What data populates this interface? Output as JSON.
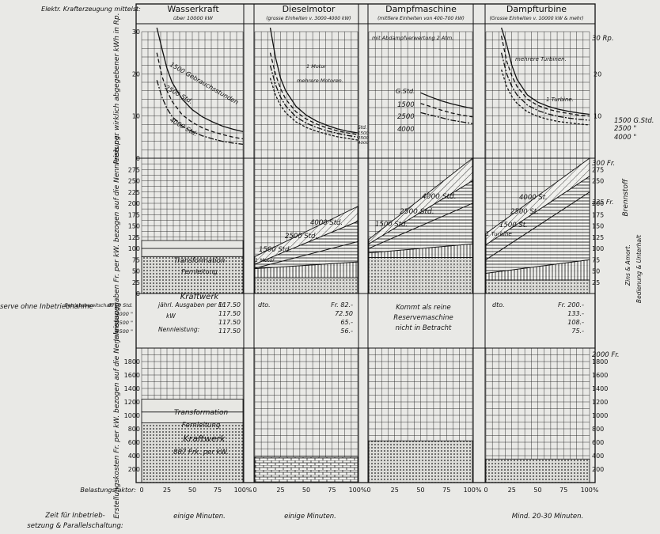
{
  "header": {
    "row_label": "Elektr. Krafterzeugung mittelst:",
    "columns": [
      {
        "title": "Wasserkraft",
        "subtitle": "über 10000 kW"
      },
      {
        "title": "Dieselmotor",
        "subtitle": "(grosse Einheiten v. 3000-4000 kW)"
      },
      {
        "title": "Dampfmaschine",
        "subtitle": "(mittlere Einheiten von 400-700 kW)"
      },
      {
        "title": "Dampfturbine",
        "subtitle": "(Grosse Einheiten v. 10000 kW & mehr)"
      }
    ]
  },
  "row_labels": {
    "price": "Preis per wirklich abgegebener kWh in Rp.",
    "annual": "Jahresausgaben Fr. per kW. bezogen auf die Nennleistung.",
    "reserve_title": "Reine Reserve ohne Inbetriebnahme",
    "reserve_sub": "Betriebsbereitschaft",
    "construction": "Erstellungskosten Fr. per kW. bezogen auf die Nennleistung.",
    "load_factor": "Belastungsfaktor:",
    "startup": "Zeit für Inbetriebsetzung & Parallelschaltung:"
  },
  "texts": {
    "steam_note": "mit Abdampfverwertung 2 Atm.",
    "price_unit": "30 Rp.",
    "annual_unit": "300 Fr.",
    "construction_unit": "2000 Fr.",
    "gstd": "G.Std.",
    "brennstoff": "Brennstoff",
    "zins": "Zins & Amort.",
    "bedienung": "Bedienung & Unterhalt",
    "fr225": "225 Fr.",
    "transformation": "Transformation",
    "fernleitung": "Fernleitung",
    "kraftwerk": "Kraftwerk",
    "kraftwerk_cost": "887 Frk. per kW.",
    "one_motor": "1 Motor",
    "multi_motors": "mehrere Motoren.",
    "multi_turbines": "mehrere Turbinen.",
    "one_turbine": "1 Turbine.",
    "one_turbine_b": "1 Turbine",
    "one_motor_b": "1 Motor",
    "water_curves": [
      "1500 Gebrauchsstunden",
      "2500 Std.",
      "4000 Std."
    ],
    "std_lbl": "Std.",
    "std_1500": "1500",
    "std_2500": "2500",
    "std_4000": "4000",
    "right_labels": [
      "1500 G.Std.",
      "2500 \"",
      "4000 \""
    ],
    "steam_hours_title": "G.Std.",
    "steam_hours": [
      "1500",
      "2500",
      "4000"
    ],
    "annual_diesel": [
      "4000 Std.",
      "2500 Std.",
      "1500 Std."
    ],
    "annual_steam": [
      "4000 Std.",
      "2500 Std.",
      "1500 Std."
    ],
    "annual_turbine": [
      "4000 St.",
      "2500 St.",
      "1500 St."
    ]
  },
  "reserve": {
    "hours": [
      "8760 Std.",
      "4000 \"",
      "2500 \"",
      "1500 \""
    ],
    "water_label": [
      "jährl. Ausgaben per Fr.",
      "kW",
      "Nennleistung:"
    ],
    "water_values": [
      "117.50",
      "117.50",
      "117.50",
      "117.50"
    ],
    "diesel_label": "dto.",
    "diesel_values": [
      "Fr. 82.-",
      "72.50",
      "65.-",
      "56.-"
    ],
    "steam_text": [
      "Kommt als reine",
      "Reservemaschine",
      "nicht in Betracht"
    ],
    "turbine_label": "dto.",
    "turbine_values": [
      "Fr. 200.-",
      "133.-",
      "108.-",
      "75.-"
    ]
  },
  "startup_times": [
    "einige Minuten.",
    "einige Minuten.",
    "",
    "Mind. 20-30 Minuten."
  ],
  "chart_data": [
    {
      "type": "line",
      "title": "Preis per wirklich abgegebener kWh in Rp.",
      "xlabel": "Belastungsfaktor",
      "ylabel": "Rp.",
      "xlim": [
        0,
        100
      ],
      "ylim": [
        0,
        30
      ],
      "x": [
        15,
        20,
        25,
        30,
        40,
        50,
        60,
        70,
        80,
        90,
        100
      ],
      "panels": [
        {
          "name": "Wasserkraft",
          "series": [
            {
              "name": "1500 Gebrauchsstunden",
              "values": [
                33,
                26,
                21.3,
                18,
                14,
                11.5,
                9.8,
                8.6,
                7.6,
                6.9,
                6.3
              ]
            },
            {
              "name": "2500 Std.",
              "values": [
                25,
                19.5,
                16,
                13.5,
                10.3,
                8.5,
                7.2,
                6.3,
                5.6,
                5.0,
                4.6
              ]
            },
            {
              "name": "4000 Std.",
              "values": [
                18.5,
                14.5,
                11.8,
                9.9,
                7.6,
                6.3,
                5.3,
                4.6,
                4.0,
                3.6,
                3.3
              ]
            }
          ]
        },
        {
          "name": "Dieselmotor",
          "series": [
            {
              "name": "1 Motor",
              "values": [
                33,
                24,
                19,
                16,
                12.3,
                10.2,
                8.8,
                7.8,
                7.0,
                6.4,
                6.0
              ]
            },
            {
              "name": "1500",
              "values": [
                25,
                20,
                16.5,
                14,
                11,
                9.3,
                8.1,
                7.2,
                6.5,
                6.0,
                5.6
              ]
            },
            {
              "name": "2500",
              "values": [
                22,
                17.5,
                14.5,
                12.4,
                9.8,
                8.3,
                7.3,
                6.5,
                5.9,
                5.4,
                5.0
              ]
            },
            {
              "name": "4000",
              "values": [
                19,
                15,
                12.5,
                10.8,
                8.6,
                7.3,
                6.4,
                5.7,
                5.1,
                4.7,
                4.3
              ]
            }
          ]
        },
        {
          "name": "Dampfmaschine",
          "series": [
            {
              "name": "1500",
              "values": [
                null,
                null,
                null,
                null,
                null,
                15.5,
                14.5,
                13.6,
                12.9,
                12.3,
                11.8
              ]
            },
            {
              "name": "2500",
              "values": [
                null,
                null,
                null,
                null,
                null,
                13,
                12.2,
                11.4,
                10.7,
                10.2,
                9.8
              ]
            },
            {
              "name": "4000",
              "values": [
                null,
                null,
                null,
                null,
                null,
                10.8,
                10.2,
                9.6,
                9.0,
                8.6,
                8.2
              ]
            }
          ]
        },
        {
          "name": "Dampfturbine",
          "series": [
            {
              "name": "mehrere Turbinen",
              "values": [
                36,
                27,
                22,
                18.7,
                15,
                13.3,
                12.3,
                11.6,
                11.1,
                10.7,
                10.4
              ]
            },
            {
              "name": "1500 G.Std.",
              "values": [
                29,
                23,
                19.5,
                17,
                14,
                12.5,
                11.6,
                11.0,
                10.6,
                10.2,
                10.0
              ]
            },
            {
              "name": "2500",
              "values": [
                25,
                20,
                17,
                15,
                12.6,
                11.3,
                10.5,
                9.9,
                9.5,
                9.2,
                9.0
              ]
            },
            {
              "name": "4000",
              "values": [
                21,
                17,
                14.6,
                13,
                11,
                9.9,
                9.2,
                8.7,
                8.4,
                8.1,
                7.9
              ]
            }
          ]
        }
      ]
    },
    {
      "type": "area",
      "title": "Jahresausgaben Fr. per kW bezogen auf die Nennleistung",
      "xlabel": "Belastungsfaktor",
      "ylabel": "Fr.",
      "xlim": [
        0,
        100
      ],
      "ylim": [
        0,
        300
      ],
      "panels": [
        {
          "name": "Wasserkraft",
          "layers": [
            {
              "name": "Kraftwerk",
              "value": 82
            },
            {
              "name": "Fernleitung",
              "value": 100
            },
            {
              "name": "Transformation",
              "value": 117.5
            }
          ]
        },
        {
          "name": "Dieselmotor",
          "x": [
            0,
            100
          ],
          "series": [
            {
              "name": "Zins & Amort.",
              "values": [
                35,
                35
              ]
            },
            {
              "name": "Bedienung & Unterhalt",
              "values": [
                55,
                70
              ]
            },
            {
              "name": "1500 Std.",
              "values": [
                56,
                115
              ]
            },
            {
              "name": "2500 Std.",
              "values": [
                65,
                160
              ]
            },
            {
              "name": "4000 Std.",
              "values": [
                82,
                193
              ]
            }
          ]
        },
        {
          "name": "Dampfmaschine",
          "x": [
            0,
            100
          ],
          "series": [
            {
              "name": "Zins & Amort.",
              "values": [
                80,
                80
              ]
            },
            {
              "name": "Bedienung & Unterhalt",
              "values": [
                90,
                110
              ]
            },
            {
              "name": "1500 Std.",
              "values": [
                100,
                200
              ]
            },
            {
              "name": "2500 Std.",
              "values": [
                110,
                250
              ]
            },
            {
              "name": "4000 Std.",
              "values": [
                120,
                300
              ]
            }
          ]
        },
        {
          "name": "Dampfturbine",
          "x": [
            0,
            100
          ],
          "series": [
            {
              "name": "Zins & Amort.",
              "values": [
                30,
                30
              ]
            },
            {
              "name": "Bedienung & Unterhalt",
              "values": [
                45,
                75
              ]
            },
            {
              "name": "1500 St.",
              "values": [
                75,
                225
              ]
            },
            {
              "name": "2500 St.",
              "values": [
                108,
                260
              ]
            },
            {
              "name": "4000 St.",
              "values": [
                133,
                300
              ]
            }
          ]
        }
      ]
    },
    {
      "type": "bar",
      "title": "Erstellungskosten Fr. per kW bezogen auf die Nennleistung",
      "ylabel": "Fr.",
      "ylim": [
        0,
        2000
      ],
      "panels": [
        {
          "name": "Wasserkraft",
          "layers": [
            {
              "name": "Kraftwerk",
              "value": 887
            },
            {
              "name": "Fernleitung",
              "value": 1050
            },
            {
              "name": "Transformation",
              "value": 1240
            }
          ]
        },
        {
          "name": "Dieselmotor",
          "value": 380
        },
        {
          "name": "Dampfmaschine",
          "value": 620
        },
        {
          "name": "Dampfturbine",
          "value": 350
        }
      ]
    }
  ]
}
